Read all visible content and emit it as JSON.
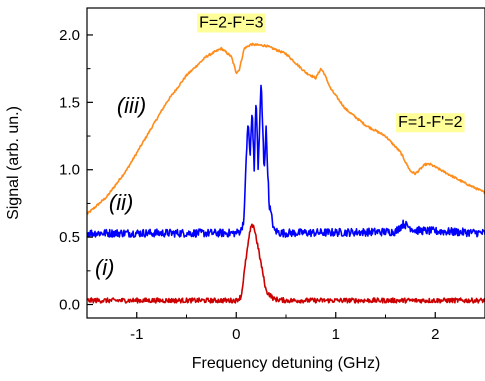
{
  "chart_data": {
    "type": "line",
    "xlabel": "Frequency detuning (GHz)",
    "ylabel": "Signal (arb. un.)",
    "xlim": [
      -1.5,
      2.5
    ],
    "ylim": [
      -0.1,
      2.2
    ],
    "x_ticks": [
      -1,
      0,
      1,
      2
    ],
    "y_ticks": [
      0.0,
      0.5,
      1.0,
      1.5,
      2.0
    ],
    "x_tick_labels": [
      "-1",
      "0",
      "1",
      "2"
    ],
    "y_tick_labels": [
      "0.0",
      "0.5",
      "1.0",
      "1.5",
      "2.0"
    ],
    "grid": false,
    "legend": "none",
    "series": [
      {
        "name": "(iii)",
        "color": "#ff8c1a",
        "noise": 0.008,
        "points": [
          [
            -1.5,
            0.67
          ],
          [
            -1.3,
            0.8
          ],
          [
            -1.1,
            1.0
          ],
          [
            -0.9,
            1.25
          ],
          [
            -0.7,
            1.5
          ],
          [
            -0.5,
            1.7
          ],
          [
            -0.3,
            1.84
          ],
          [
            -0.15,
            1.9
          ],
          [
            -0.05,
            1.84
          ],
          [
            0.0,
            1.72
          ],
          [
            0.03,
            1.74
          ],
          [
            0.08,
            1.9
          ],
          [
            0.15,
            1.93
          ],
          [
            0.3,
            1.92
          ],
          [
            0.5,
            1.86
          ],
          [
            0.7,
            1.72
          ],
          [
            0.8,
            1.68
          ],
          [
            0.85,
            1.75
          ],
          [
            0.88,
            1.72
          ],
          [
            0.95,
            1.6
          ],
          [
            1.1,
            1.45
          ],
          [
            1.3,
            1.33
          ],
          [
            1.5,
            1.25
          ],
          [
            1.65,
            1.13
          ],
          [
            1.75,
            0.99
          ],
          [
            1.8,
            0.97
          ],
          [
            1.9,
            1.04
          ],
          [
            1.95,
            1.04
          ],
          [
            2.1,
            0.98
          ],
          [
            2.3,
            0.9
          ],
          [
            2.5,
            0.83
          ]
        ]
      },
      {
        "name": "(ii)",
        "color": "#0000ff",
        "noise": 0.03,
        "points": [
          [
            -1.5,
            0.53
          ],
          [
            0.0,
            0.53
          ],
          [
            0.05,
            0.55
          ],
          [
            0.08,
            0.65
          ],
          [
            0.1,
            1.1
          ],
          [
            0.12,
            1.35
          ],
          [
            0.14,
            1.1
          ],
          [
            0.16,
            1.45
          ],
          [
            0.18,
            1.0
          ],
          [
            0.2,
            1.55
          ],
          [
            0.22,
            1.0
          ],
          [
            0.25,
            1.65
          ],
          [
            0.28,
            1.0
          ],
          [
            0.3,
            1.3
          ],
          [
            0.33,
            0.75
          ],
          [
            0.38,
            0.55
          ],
          [
            0.45,
            0.53
          ],
          [
            1.6,
            0.54
          ],
          [
            1.68,
            0.6
          ],
          [
            1.8,
            0.55
          ],
          [
            2.5,
            0.53
          ]
        ]
      },
      {
        "name": "(i)",
        "color": "#cc0000",
        "noise": 0.018,
        "points": [
          [
            -1.5,
            0.03
          ],
          [
            0.0,
            0.03
          ],
          [
            0.05,
            0.06
          ],
          [
            0.1,
            0.35
          ],
          [
            0.14,
            0.55
          ],
          [
            0.17,
            0.6
          ],
          [
            0.2,
            0.5
          ],
          [
            0.25,
            0.3
          ],
          [
            0.3,
            0.1
          ],
          [
            0.38,
            0.04
          ],
          [
            0.5,
            0.03
          ],
          [
            2.5,
            0.03
          ]
        ]
      }
    ],
    "annotations": [
      {
        "text": "F=2-F'=3",
        "x": -0.05,
        "y": 2.1
      },
      {
        "text": "F=1-F'=2",
        "x": 1.95,
        "y": 1.36
      }
    ],
    "curve_labels": [
      {
        "text": "(iii)",
        "x": -1.2,
        "y": 1.42
      },
      {
        "text": "(ii)",
        "x": -1.28,
        "y": 0.7
      },
      {
        "text": "(i)",
        "x": -1.42,
        "y": 0.22
      }
    ]
  }
}
